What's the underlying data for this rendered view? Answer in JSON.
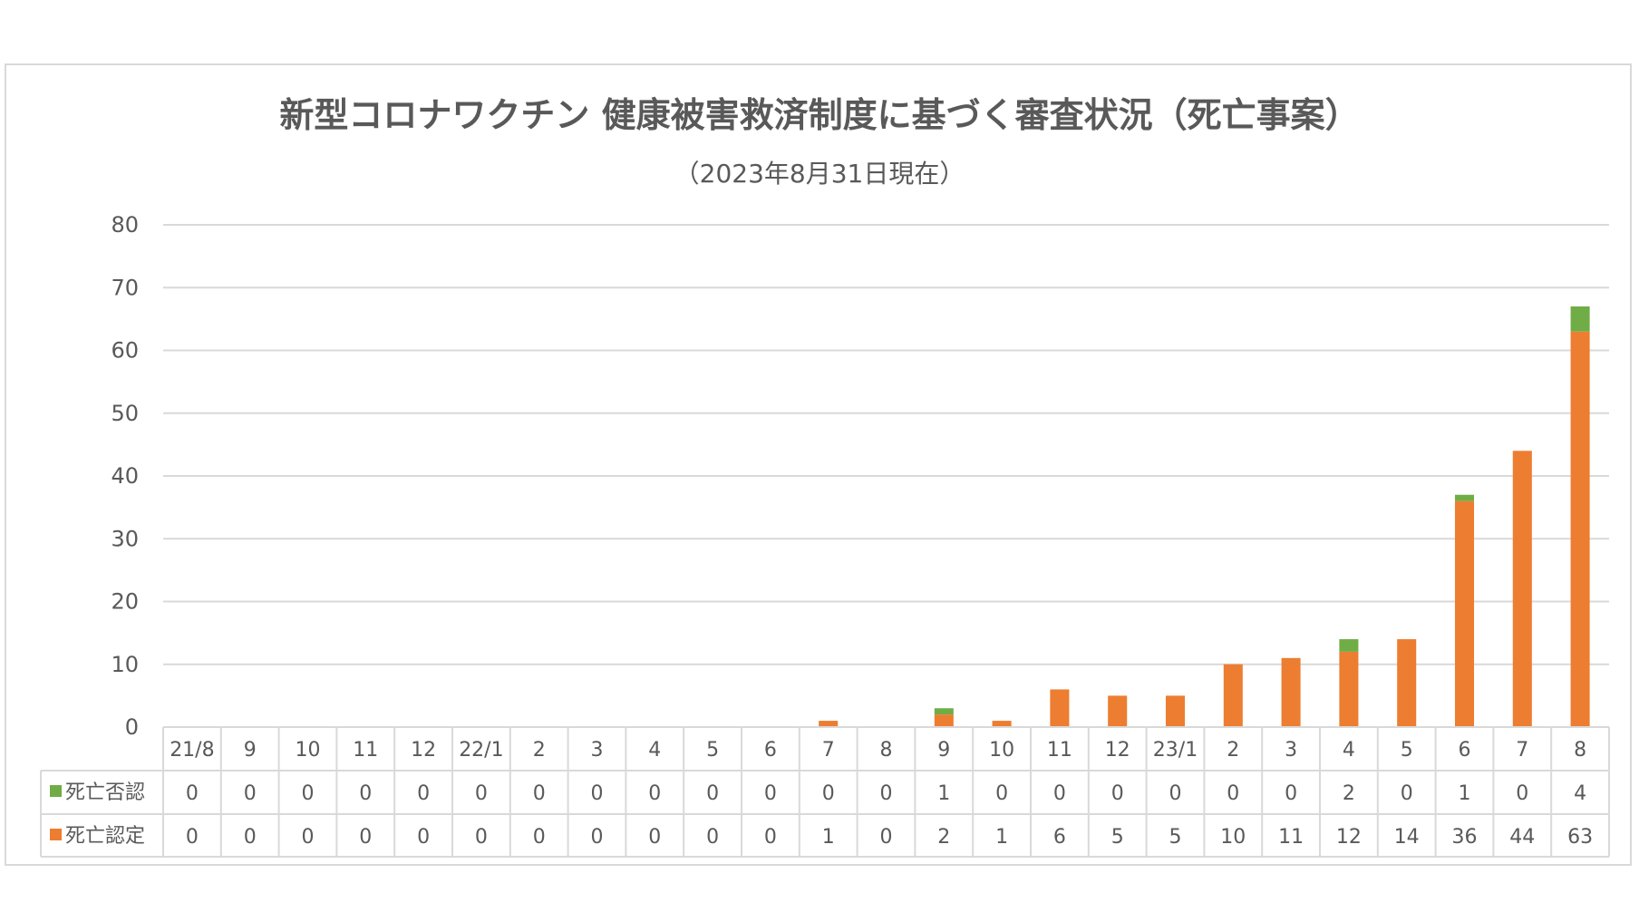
{
  "chart_data": {
    "type": "bar",
    "stacked": true,
    "title": "新型コロナワクチン 健康被害救済制度に基づく審査状況（死亡事案）",
    "subtitle": "（2023年8月31日現在）",
    "categories": [
      "21/8",
      "9",
      "10",
      "11",
      "12",
      "22/1",
      "2",
      "3",
      "4",
      "5",
      "6",
      "7",
      "8",
      "9",
      "10",
      "11",
      "12",
      "23/1",
      "2",
      "3",
      "4",
      "5",
      "6",
      "7",
      "8"
    ],
    "series": [
      {
        "name": "死亡認定",
        "color": "#ed7d31",
        "values": [
          0,
          0,
          0,
          0,
          0,
          0,
          0,
          0,
          0,
          0,
          0,
          1,
          0,
          2,
          1,
          6,
          5,
          5,
          10,
          11,
          12,
          14,
          36,
          44,
          63
        ]
      },
      {
        "name": "死亡否認",
        "color": "#70ad47",
        "values": [
          0,
          0,
          0,
          0,
          0,
          0,
          0,
          0,
          0,
          0,
          0,
          0,
          0,
          1,
          0,
          0,
          0,
          0,
          0,
          0,
          2,
          0,
          1,
          0,
          4
        ]
      }
    ],
    "table_row_order": [
      "死亡否認",
      "死亡認定"
    ],
    "yticks": [
      0,
      10,
      20,
      30,
      40,
      50,
      60,
      70,
      80
    ],
    "ylim": [
      0,
      80
    ],
    "grid": true,
    "legend": "data-table"
  }
}
